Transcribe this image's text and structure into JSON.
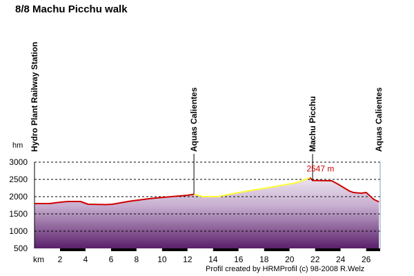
{
  "chart": {
    "title": "8/8 Machu Picchu walk",
    "credit": "Profil created by HRMProfil (c) 98-2008 R.Welz"
  },
  "chart_data": {
    "type": "area",
    "title": "8/8 Machu Picchu walk",
    "xlabel": "km",
    "ylabel": "hm",
    "xlim": [
      0,
      27.1
    ],
    "ylim": [
      500,
      3000
    ],
    "xticks": [
      2,
      4,
      6,
      8,
      10,
      12,
      14,
      16,
      18,
      20,
      22,
      24,
      26
    ],
    "yticks": [
      500,
      1000,
      1500,
      2000,
      2500,
      3000
    ],
    "grid": "horizontal dashed",
    "colors": {
      "segment_a": "#cc0000",
      "segment_b": "#ffff33",
      "marker_line": "#000000",
      "peak_label": "#cc0000"
    },
    "peak_label": "2547 m",
    "peak": {
      "x": 21.6,
      "y": 2547
    },
    "waypoints": [
      {
        "name": "Hydro Plant Railway Station",
        "km": 0
      },
      {
        "name": "Aquas Calientes",
        "km": 12.5
      },
      {
        "name": "Machu Picchu",
        "km": 21.8
      },
      {
        "name": "Aquas Calientes",
        "km": 27.0
      }
    ],
    "series": [
      {
        "color": "#cc0000",
        "points": [
          [
            0,
            1800
          ],
          [
            1.2,
            1800
          ],
          [
            1.8,
            1830
          ],
          [
            2.6,
            1860
          ],
          [
            3.6,
            1860
          ],
          [
            4.2,
            1780
          ],
          [
            5.6,
            1770
          ],
          [
            6.1,
            1780
          ],
          [
            7.5,
            1870
          ],
          [
            9.2,
            1950
          ],
          [
            10.4,
            1990
          ],
          [
            12.0,
            2040
          ],
          [
            12.5,
            2070
          ]
        ]
      },
      {
        "color": "#ffff33",
        "points": [
          [
            12.5,
            2070
          ],
          [
            13.2,
            2000
          ],
          [
            14.4,
            2000
          ],
          [
            15.0,
            2050
          ],
          [
            16.5,
            2150
          ],
          [
            18.5,
            2270
          ],
          [
            20.5,
            2400
          ],
          [
            21.6,
            2547
          ]
        ]
      },
      {
        "color": "#cc0000",
        "points": [
          [
            21.6,
            2547
          ],
          [
            21.8,
            2470
          ],
          [
            23.3,
            2460
          ],
          [
            23.8,
            2360
          ],
          [
            24.3,
            2250
          ],
          [
            24.7,
            2160
          ],
          [
            25.0,
            2120
          ],
          [
            25.6,
            2100
          ],
          [
            26.0,
            2120
          ],
          [
            26.6,
            1920
          ],
          [
            27.0,
            1850
          ]
        ]
      }
    ]
  }
}
